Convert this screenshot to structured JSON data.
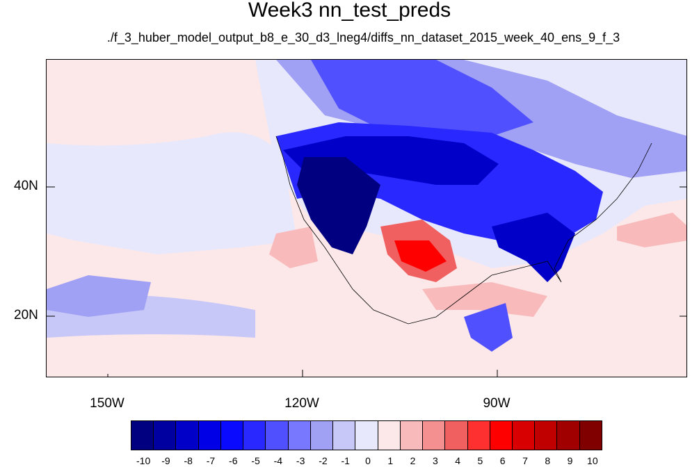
{
  "title": "Week3 nn_test_preds",
  "subtitle": "./f_3_huber_model_output_b8_e_30_d3_lneg4/diffs_nn_dataset_2015_week_40_ens_9_f_3",
  "map": {
    "longitude_labels": [
      "150W",
      "120W",
      "90W"
    ],
    "latitude_labels": [
      "40N",
      "20N"
    ]
  },
  "colorbar": {
    "labels": [
      "-10",
      "-9",
      "-8",
      "-7",
      "-6",
      "-5",
      "-4",
      "-3",
      "-2",
      "-1",
      "0",
      "1",
      "2",
      "3",
      "4",
      "5",
      "6",
      "7",
      "8",
      "9",
      "10"
    ],
    "colors": [
      "#000080",
      "#0000a0",
      "#0000c8",
      "#0000e6",
      "#0a0aff",
      "#2828ff",
      "#5050ff",
      "#7878ff",
      "#a0a0f5",
      "#c8c8f8",
      "#e8e8fc",
      "#fce8e8",
      "#f8baba",
      "#f59090",
      "#f06060",
      "#ff3030",
      "#ff0000",
      "#d80000",
      "#c00000",
      "#a00000",
      "#800000"
    ]
  },
  "chart_data": {
    "type": "heatmap",
    "title": "Week3 nn_test_preds",
    "subtitle": "./f_3_huber_model_output_b8_e_30_d3_lneg4/diffs_nn_dataset_2015_week_40_ens_9_f_3",
    "x_tick_labels": [
      "150W",
      "120W",
      "90W"
    ],
    "y_tick_labels": [
      "40N",
      "20N"
    ],
    "colorbar_levels": [
      -10,
      -9,
      -8,
      -7,
      -6,
      -5,
      -4,
      -3,
      -2,
      -1,
      0,
      1,
      2,
      3,
      4,
      5,
      6,
      7,
      8,
      9,
      10
    ]
  }
}
